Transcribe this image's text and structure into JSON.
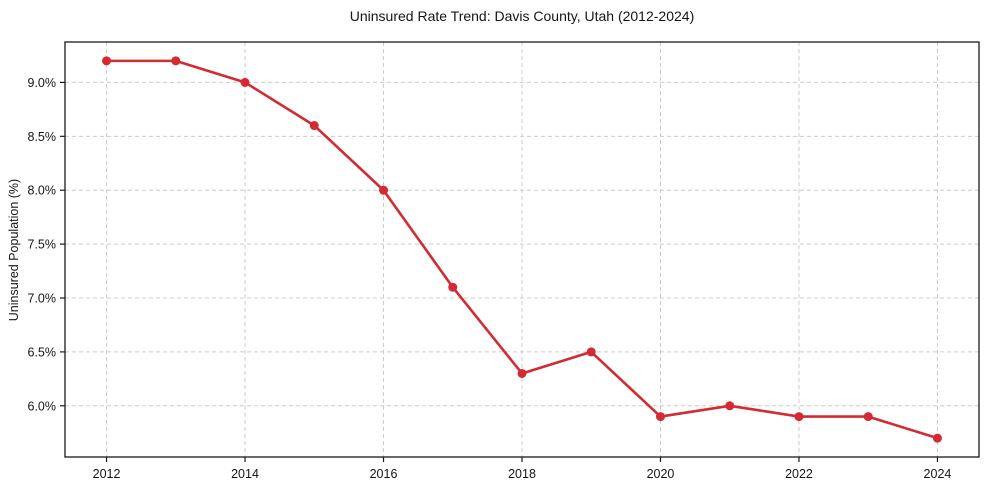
{
  "chart_data": {
    "type": "line",
    "title": "Uninsured Rate Trend: Davis County, Utah (2012-2024)",
    "xlabel": "",
    "ylabel": "Uninsured Population (%)",
    "x": [
      2012,
      2013,
      2014,
      2015,
      2016,
      2017,
      2018,
      2019,
      2020,
      2021,
      2022,
      2023,
      2024
    ],
    "values": [
      9.2,
      9.2,
      9.0,
      8.6,
      8.0,
      7.1,
      6.3,
      6.5,
      5.9,
      6.0,
      5.9,
      5.9,
      5.7
    ],
    "xlim": [
      2011.4,
      2024.6
    ],
    "ylim": [
      5.525,
      9.375
    ],
    "xticks": {
      "values": [
        2012,
        2014,
        2016,
        2018,
        2020,
        2022,
        2024
      ],
      "labels": [
        "2012",
        "2014",
        "2016",
        "2018",
        "2020",
        "2022",
        "2024"
      ]
    },
    "yticks": {
      "values": [
        6.0,
        6.5,
        7.0,
        7.5,
        8.0,
        8.5,
        9.0
      ],
      "labels": [
        "6.0%",
        "6.5%",
        "7.0%",
        "7.5%",
        "8.0%",
        "8.5%",
        "9.0%"
      ]
    },
    "grid": true,
    "grid_style": "dashed",
    "legend": "none",
    "marker": "circle",
    "colors": {
      "line": "#d42a33",
      "grid": "#cccccc",
      "axis": "#1a1a1a",
      "text": "#151515",
      "background": "#ffffff"
    }
  }
}
